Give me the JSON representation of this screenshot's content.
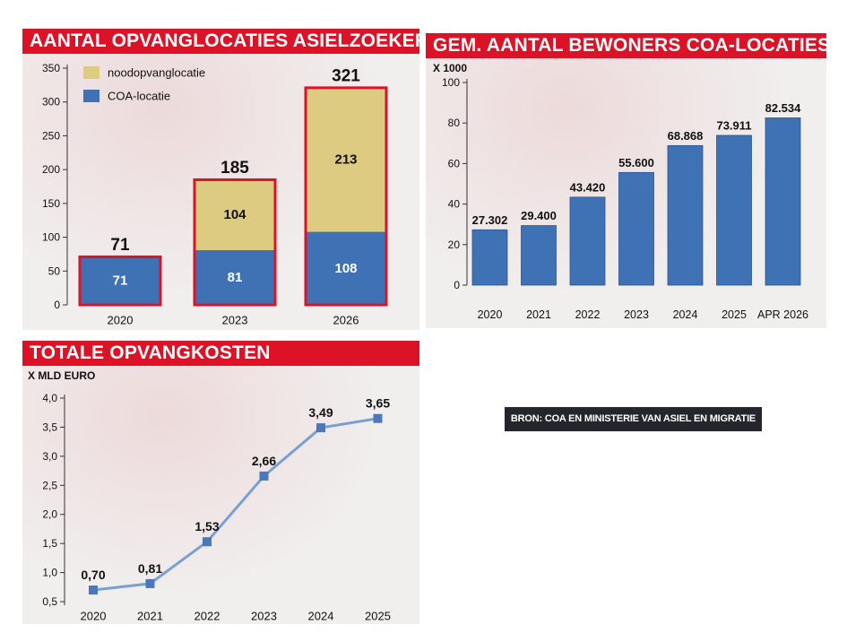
{
  "source": "BRON: COA EN MINISTERIE VAN ASIEL EN MIGRATIE",
  "colors": {
    "red": "#dc1226",
    "blue": "#3f71b5",
    "khaki": "#dccb80",
    "line": "#7aa0d2",
    "marker": "#4a78b8"
  },
  "chart_data": [
    {
      "type": "bar",
      "title": "AANTAL OPVANGLOCATIES ASIELZOEKERS",
      "stacked": true,
      "categories": [
        "2020",
        "2023",
        "2026"
      ],
      "series": [
        {
          "name": "COA-locatie",
          "values": [
            71,
            81,
            108
          ],
          "labels": [
            "71",
            "81",
            "108"
          ],
          "color": "#3f71b5"
        },
        {
          "name": "noodopvanglocatie",
          "values": [
            0,
            104,
            213
          ],
          "labels": [
            "",
            "104",
            "213"
          ],
          "color": "#dccb80"
        }
      ],
      "totals": [
        "71",
        "185",
        "321"
      ],
      "ylim": [
        0,
        350
      ],
      "yticks": [
        "0",
        "50",
        "100",
        "150",
        "200",
        "250",
        "300",
        "350"
      ],
      "legend": "top-left"
    },
    {
      "type": "bar",
      "title": "GEM. AANTAL BEWONERS COA-LOCATIES",
      "ylabel": "X 1000",
      "categories": [
        "2020",
        "2021",
        "2022",
        "2023",
        "2024",
        "2025",
        "APR 2026"
      ],
      "values": [
        27.302,
        29.4,
        43.42,
        55.6,
        68.868,
        73.911,
        82.534
      ],
      "labels": [
        "27.302",
        "29.400",
        "43.420",
        "55.600",
        "68.868",
        "73.911",
        "82.534"
      ],
      "ylim": [
        0,
        100
      ],
      "yticks": [
        "0",
        "20",
        "40",
        "60",
        "80",
        "100"
      ]
    },
    {
      "type": "line",
      "title": "TOTALE OPVANGKOSTEN",
      "ylabel": "X MLD EURO",
      "categories": [
        "2020",
        "2021",
        "2022",
        "2023",
        "2024",
        "2025"
      ],
      "values": [
        0.7,
        0.81,
        1.53,
        2.66,
        3.49,
        3.65
      ],
      "labels": [
        "0,70",
        "0,81",
        "1,53",
        "2,66",
        "3,49",
        "3,65"
      ],
      "ylim": [
        0.5,
        4.0
      ],
      "yticks": [
        "0,5",
        "1,0",
        "1,5",
        "2,0",
        "2,5",
        "3,0",
        "3,5",
        "4,0"
      ]
    }
  ]
}
